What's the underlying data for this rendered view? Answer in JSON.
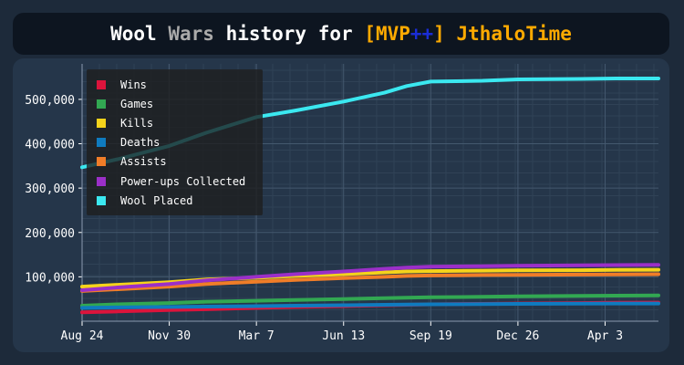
{
  "title": {
    "part1": "Wool",
    "part2": "Wars",
    "part3": "history for",
    "part4": "[MVP",
    "part5": "++",
    "part6": "] JthaloTime"
  },
  "colors": {
    "title_part1": "#ffffff",
    "title_part2": "#aaaaaa",
    "title_part3": "#ffffff",
    "title_part4": "#ffaa00",
    "title_part5": "#1a2dd6",
    "title_part6": "#ffaa00",
    "background": "#1d2a3a",
    "plot_background": "#25364a",
    "grid": "#3a4c60",
    "axis_text": "#ffffff"
  },
  "chart_data": {
    "type": "line",
    "title": "Wool Wars history for [MVP++] JthaloTime",
    "xlabel": "",
    "ylabel": "",
    "x_ticks": [
      "Aug 24",
      "Nov 30",
      "Mar  7",
      "Jun 13",
      "Sep 19",
      "Dec 26",
      "Apr  3"
    ],
    "y_ticks": [
      "100,000",
      "200,000",
      "300,000",
      "400,000",
      "500,000"
    ],
    "ylim": [
      0,
      580000
    ],
    "grid": true,
    "legend_position": "top-left",
    "x": [
      0,
      40,
      98,
      140,
      196,
      240,
      294,
      340,
      365,
      392,
      450,
      490,
      560,
      600,
      648
    ],
    "series": [
      {
        "name": "Wins",
        "color": "#dc143c",
        "values": [
          20000,
          22000,
          25000,
          27000,
          30000,
          32000,
          34000,
          36000,
          37000,
          38000,
          39000,
          40000,
          41000,
          41500,
          42000
        ]
      },
      {
        "name": "Games",
        "color": "#32a852",
        "values": [
          35000,
          38000,
          41000,
          44000,
          46000,
          48000,
          50000,
          52000,
          53000,
          54000,
          55000,
          56000,
          57000,
          57500,
          58000
        ]
      },
      {
        "name": "Kills",
        "color": "#f5d31b",
        "values": [
          78000,
          82000,
          88000,
          94000,
          98000,
          102000,
          106000,
          110000,
          112000,
          113000,
          114000,
          114500,
          115000,
          115500,
          116000
        ]
      },
      {
        "name": "Deaths",
        "color": "#0f7bbf",
        "values": [
          30000,
          31000,
          32000,
          33000,
          34000,
          35000,
          36000,
          37000,
          37500,
          38000,
          38500,
          39000,
          39500,
          40000,
          40000
        ]
      },
      {
        "name": "Assists",
        "color": "#f07d28",
        "values": [
          68000,
          72000,
          78000,
          84000,
          89000,
          93000,
          97000,
          100000,
          102000,
          103000,
          104000,
          104500,
          105000,
          105500,
          106000
        ]
      },
      {
        "name": "Power-ups Collected",
        "color": "#9b2fc8",
        "values": [
          70000,
          76000,
          84000,
          92000,
          100000,
          106000,
          112000,
          118000,
          121000,
          123000,
          124000,
          125000,
          126000,
          126500,
          127000
        ]
      },
      {
        "name": "Wool Placed",
        "color": "#3be8f0",
        "values": [
          347000,
          365000,
          395000,
          425000,
          460000,
          475000,
          495000,
          515000,
          530000,
          540000,
          542000,
          545000,
          546000,
          547000,
          547000
        ]
      }
    ]
  }
}
